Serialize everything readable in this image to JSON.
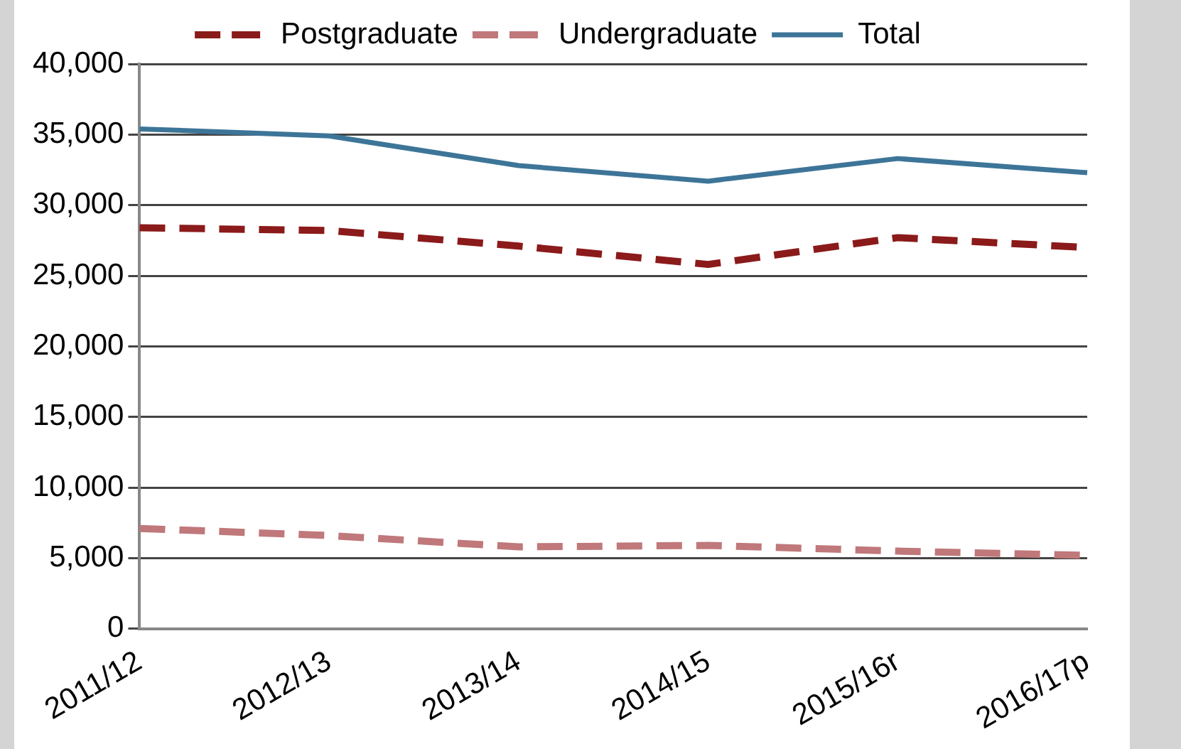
{
  "chart_data": {
    "type": "line",
    "categories": [
      "2011/12",
      "2012/13",
      "2013/14",
      "2014/15",
      "2015/16r",
      "2016/17p"
    ],
    "series": [
      {
        "name": "Postgraduate",
        "color": "#8b1a1a",
        "line_style": "dashed",
        "values": [
          28400,
          28200,
          27100,
          25800,
          27700,
          27000
        ]
      },
      {
        "name": "Undergraduate",
        "color": "#c0787a",
        "line_style": "dashed",
        "values": [
          7100,
          6600,
          5800,
          5900,
          5500,
          5200
        ]
      },
      {
        "name": "Total",
        "color": "#3d7598",
        "line_style": "solid",
        "values": [
          35400,
          34900,
          32800,
          31700,
          33300,
          32300
        ]
      }
    ],
    "ylim": [
      0,
      40000
    ],
    "yticks": [
      0,
      {
        "value": 5000,
        "label": "5,000"
      },
      {
        "value": 10000,
        "label": "10,000"
      },
      {
        "value": 15000,
        "label": "15,000"
      },
      {
        "value": 20000,
        "label": "20,000"
      },
      {
        "value": 25000,
        "label": "25,000"
      },
      {
        "value": 30000,
        "label": "30,000"
      },
      {
        "value": 35000,
        "label": "35,000"
      },
      {
        "value": 40000,
        "label": "40,000"
      }
    ],
    "grid": "y",
    "legend": "top",
    "marker": "none"
  }
}
